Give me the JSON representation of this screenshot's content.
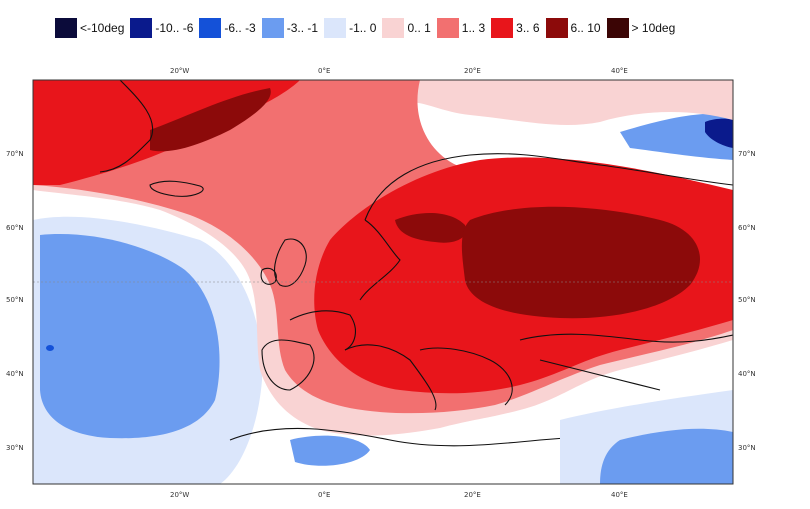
{
  "legend": [
    {
      "label": "<-10deg",
      "color": "#0b0b3a"
    },
    {
      "label": "-10.. -6",
      "color": "#0a1a8c"
    },
    {
      "label": "-6.. -3",
      "color": "#1451d8"
    },
    {
      "label": "-3.. -1",
      "color": "#6b9cf0"
    },
    {
      "label": "-1..  0",
      "color": "#dbe6fb"
    },
    {
      "label": "0..  1",
      "color": "#f9d3d3"
    },
    {
      "label": "1..  3",
      "color": "#f27070"
    },
    {
      "label": "3..  6",
      "color": "#e8151b"
    },
    {
      "label": "6.. 10",
      "color": "#8c0a0a"
    },
    {
      "label": "> 10deg",
      "color": "#3b0505"
    }
  ],
  "axes": {
    "lon_top": [
      "20°W",
      "0°E",
      "20°E",
      "40°E"
    ],
    "lon_bottom": [
      "20°W",
      "0°E",
      "20°E",
      "40°E"
    ],
    "lat_left": [
      "70°N",
      "60°N",
      "50°N",
      "40°N",
      "30°N"
    ],
    "lat_right": [
      "70°N",
      "60°N",
      "50°N",
      "40°N",
      "30°N"
    ]
  },
  "map_colors": {
    "ocean_neutral": "#ffffff",
    "cold_light": "#dbe6fb",
    "cold_mid": "#6b9cf0",
    "cold_deep": "#1451d8",
    "warm_light": "#f9d3d3",
    "warm_mid": "#f27070",
    "warm_strong": "#e8151b",
    "warm_dark": "#8c0a0a"
  }
}
